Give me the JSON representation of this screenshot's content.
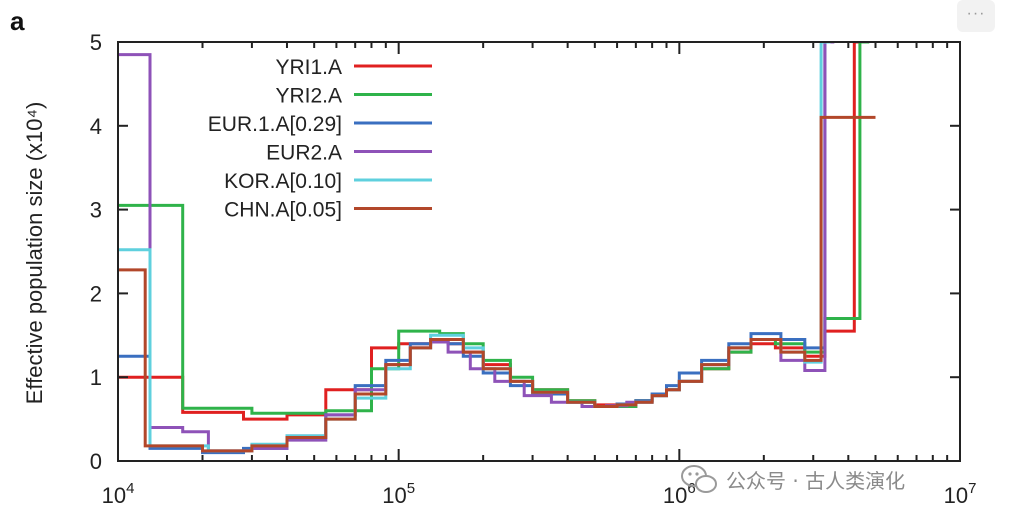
{
  "ui": {
    "more_label": "···"
  },
  "watermark": {
    "text": "公众号 · 古人类演化",
    "icon": "wechat-icon"
  },
  "chart_data": {
    "type": "line",
    "panel_label": "a",
    "title": "",
    "xlabel": "",
    "ylabel": "Effective population size (x10⁴)",
    "x_scale": "log",
    "xlim": [
      10000,
      10000000
    ],
    "ylim": [
      0,
      5
    ],
    "x_ticks": [
      {
        "value": 10000,
        "base": "10",
        "exp": "4"
      },
      {
        "value": 100000,
        "base": "10",
        "exp": "5"
      },
      {
        "value": 1000000,
        "base": "10",
        "exp": "6"
      },
      {
        "value": 10000000,
        "base": "10",
        "exp": "7"
      }
    ],
    "y_ticks": [
      0,
      1,
      2,
      3,
      4,
      5
    ],
    "grid": false,
    "legend_position": "top-left",
    "series": [
      {
        "name": "YRI1.A",
        "color": "#e02020",
        "x": [
          10000,
          17000,
          28000,
          40000,
          55000,
          80000,
          100000,
          130000,
          150000,
          170000,
          200000,
          250000,
          300000,
          400000,
          500000,
          600000,
          700000,
          800000,
          900000,
          1000000,
          1200000,
          1500000,
          1800000,
          2200000,
          2800000,
          3300000,
          4200000
        ],
        "y": [
          1.0,
          0.58,
          0.5,
          0.55,
          0.85,
          1.35,
          1.4,
          1.45,
          1.4,
          1.3,
          1.15,
          0.95,
          0.85,
          0.72,
          0.67,
          0.68,
          0.72,
          0.78,
          0.85,
          0.95,
          1.1,
          1.3,
          1.4,
          1.35,
          1.25,
          1.55,
          5.0
        ]
      },
      {
        "name": "YRI2.A",
        "color": "#2fb34a",
        "x": [
          10000,
          17000,
          30000,
          55000,
          80000,
          100000,
          140000,
          170000,
          200000,
          250000,
          300000,
          400000,
          500000,
          600000,
          700000,
          800000,
          900000,
          1000000,
          1200000,
          1500000,
          1800000,
          2200000,
          2800000,
          3300000,
          4400000
        ],
        "y": [
          3.05,
          0.63,
          0.57,
          0.6,
          1.1,
          1.55,
          1.52,
          1.4,
          1.2,
          1.0,
          0.85,
          0.72,
          0.65,
          0.65,
          0.72,
          0.78,
          0.85,
          0.95,
          1.1,
          1.3,
          1.45,
          1.4,
          1.3,
          1.7,
          5.0
        ]
      },
      {
        "name": "EUR.1.A[0.29]",
        "color": "#3a6fc0",
        "x": [
          10000,
          13000,
          20000,
          28000,
          40000,
          55000,
          70000,
          90000,
          110000,
          130000,
          150000,
          170000,
          200000,
          250000,
          300000,
          400000,
          500000,
          600000,
          700000,
          800000,
          900000,
          1000000,
          1200000,
          1500000,
          1800000,
          2300000,
          2800000,
          3300000
        ],
        "y": [
          1.25,
          0.15,
          0.1,
          0.15,
          0.3,
          0.55,
          0.9,
          1.2,
          1.4,
          1.45,
          1.4,
          1.25,
          1.05,
          0.9,
          0.8,
          0.7,
          0.65,
          0.68,
          0.72,
          0.8,
          0.9,
          1.05,
          1.2,
          1.4,
          1.52,
          1.45,
          1.35,
          5.0
        ]
      },
      {
        "name": "EUR2.A",
        "color": "#8e52b8",
        "x": [
          10000,
          13000,
          17000,
          21000,
          30000,
          40000,
          55000,
          70000,
          90000,
          110000,
          130000,
          150000,
          180000,
          220000,
          280000,
          350000,
          450000,
          550000,
          650000,
          800000,
          900000,
          1000000,
          1200000,
          1500000,
          1800000,
          2300000,
          2800000,
          3300000
        ],
        "y": [
          4.85,
          0.4,
          0.35,
          0.12,
          0.15,
          0.25,
          0.55,
          0.85,
          1.15,
          1.35,
          1.42,
          1.3,
          1.1,
          0.95,
          0.78,
          0.7,
          0.65,
          0.66,
          0.7,
          0.78,
          0.85,
          0.95,
          1.15,
          1.35,
          1.45,
          1.2,
          1.08,
          5.0
        ]
      },
      {
        "name": "KOR.A[0.10]",
        "color": "#5fd0de",
        "x": [
          10000,
          13000,
          21000,
          30000,
          40000,
          55000,
          70000,
          90000,
          110000,
          130000,
          150000,
          170000,
          200000,
          250000,
          300000,
          400000,
          500000,
          600000,
          700000,
          800000,
          900000,
          1000000,
          1200000,
          1500000,
          1800000,
          2300000,
          2800000,
          3200000
        ],
        "y": [
          2.52,
          0.18,
          0.12,
          0.2,
          0.3,
          0.5,
          0.75,
          1.1,
          1.35,
          1.5,
          1.5,
          1.35,
          1.1,
          0.95,
          0.82,
          0.7,
          0.65,
          0.67,
          0.7,
          0.78,
          0.85,
          0.95,
          1.15,
          1.35,
          1.45,
          1.3,
          1.18,
          5.0
        ]
      },
      {
        "name": "CHN.A[0.05]",
        "color": "#b2472a",
        "x": [
          10000,
          12500,
          20000,
          30000,
          40000,
          55000,
          70000,
          90000,
          110000,
          130000,
          150000,
          170000,
          200000,
          250000,
          300000,
          400000,
          500000,
          600000,
          700000,
          800000,
          900000,
          1000000,
          1200000,
          1500000,
          1800000,
          2300000,
          2800000,
          3200000,
          5000000
        ],
        "y": [
          2.28,
          0.18,
          0.12,
          0.18,
          0.28,
          0.5,
          0.8,
          1.15,
          1.35,
          1.45,
          1.45,
          1.3,
          1.1,
          0.95,
          0.82,
          0.7,
          0.65,
          0.67,
          0.7,
          0.78,
          0.85,
          0.95,
          1.15,
          1.35,
          1.45,
          1.3,
          1.2,
          4.1,
          4.1
        ]
      }
    ]
  }
}
